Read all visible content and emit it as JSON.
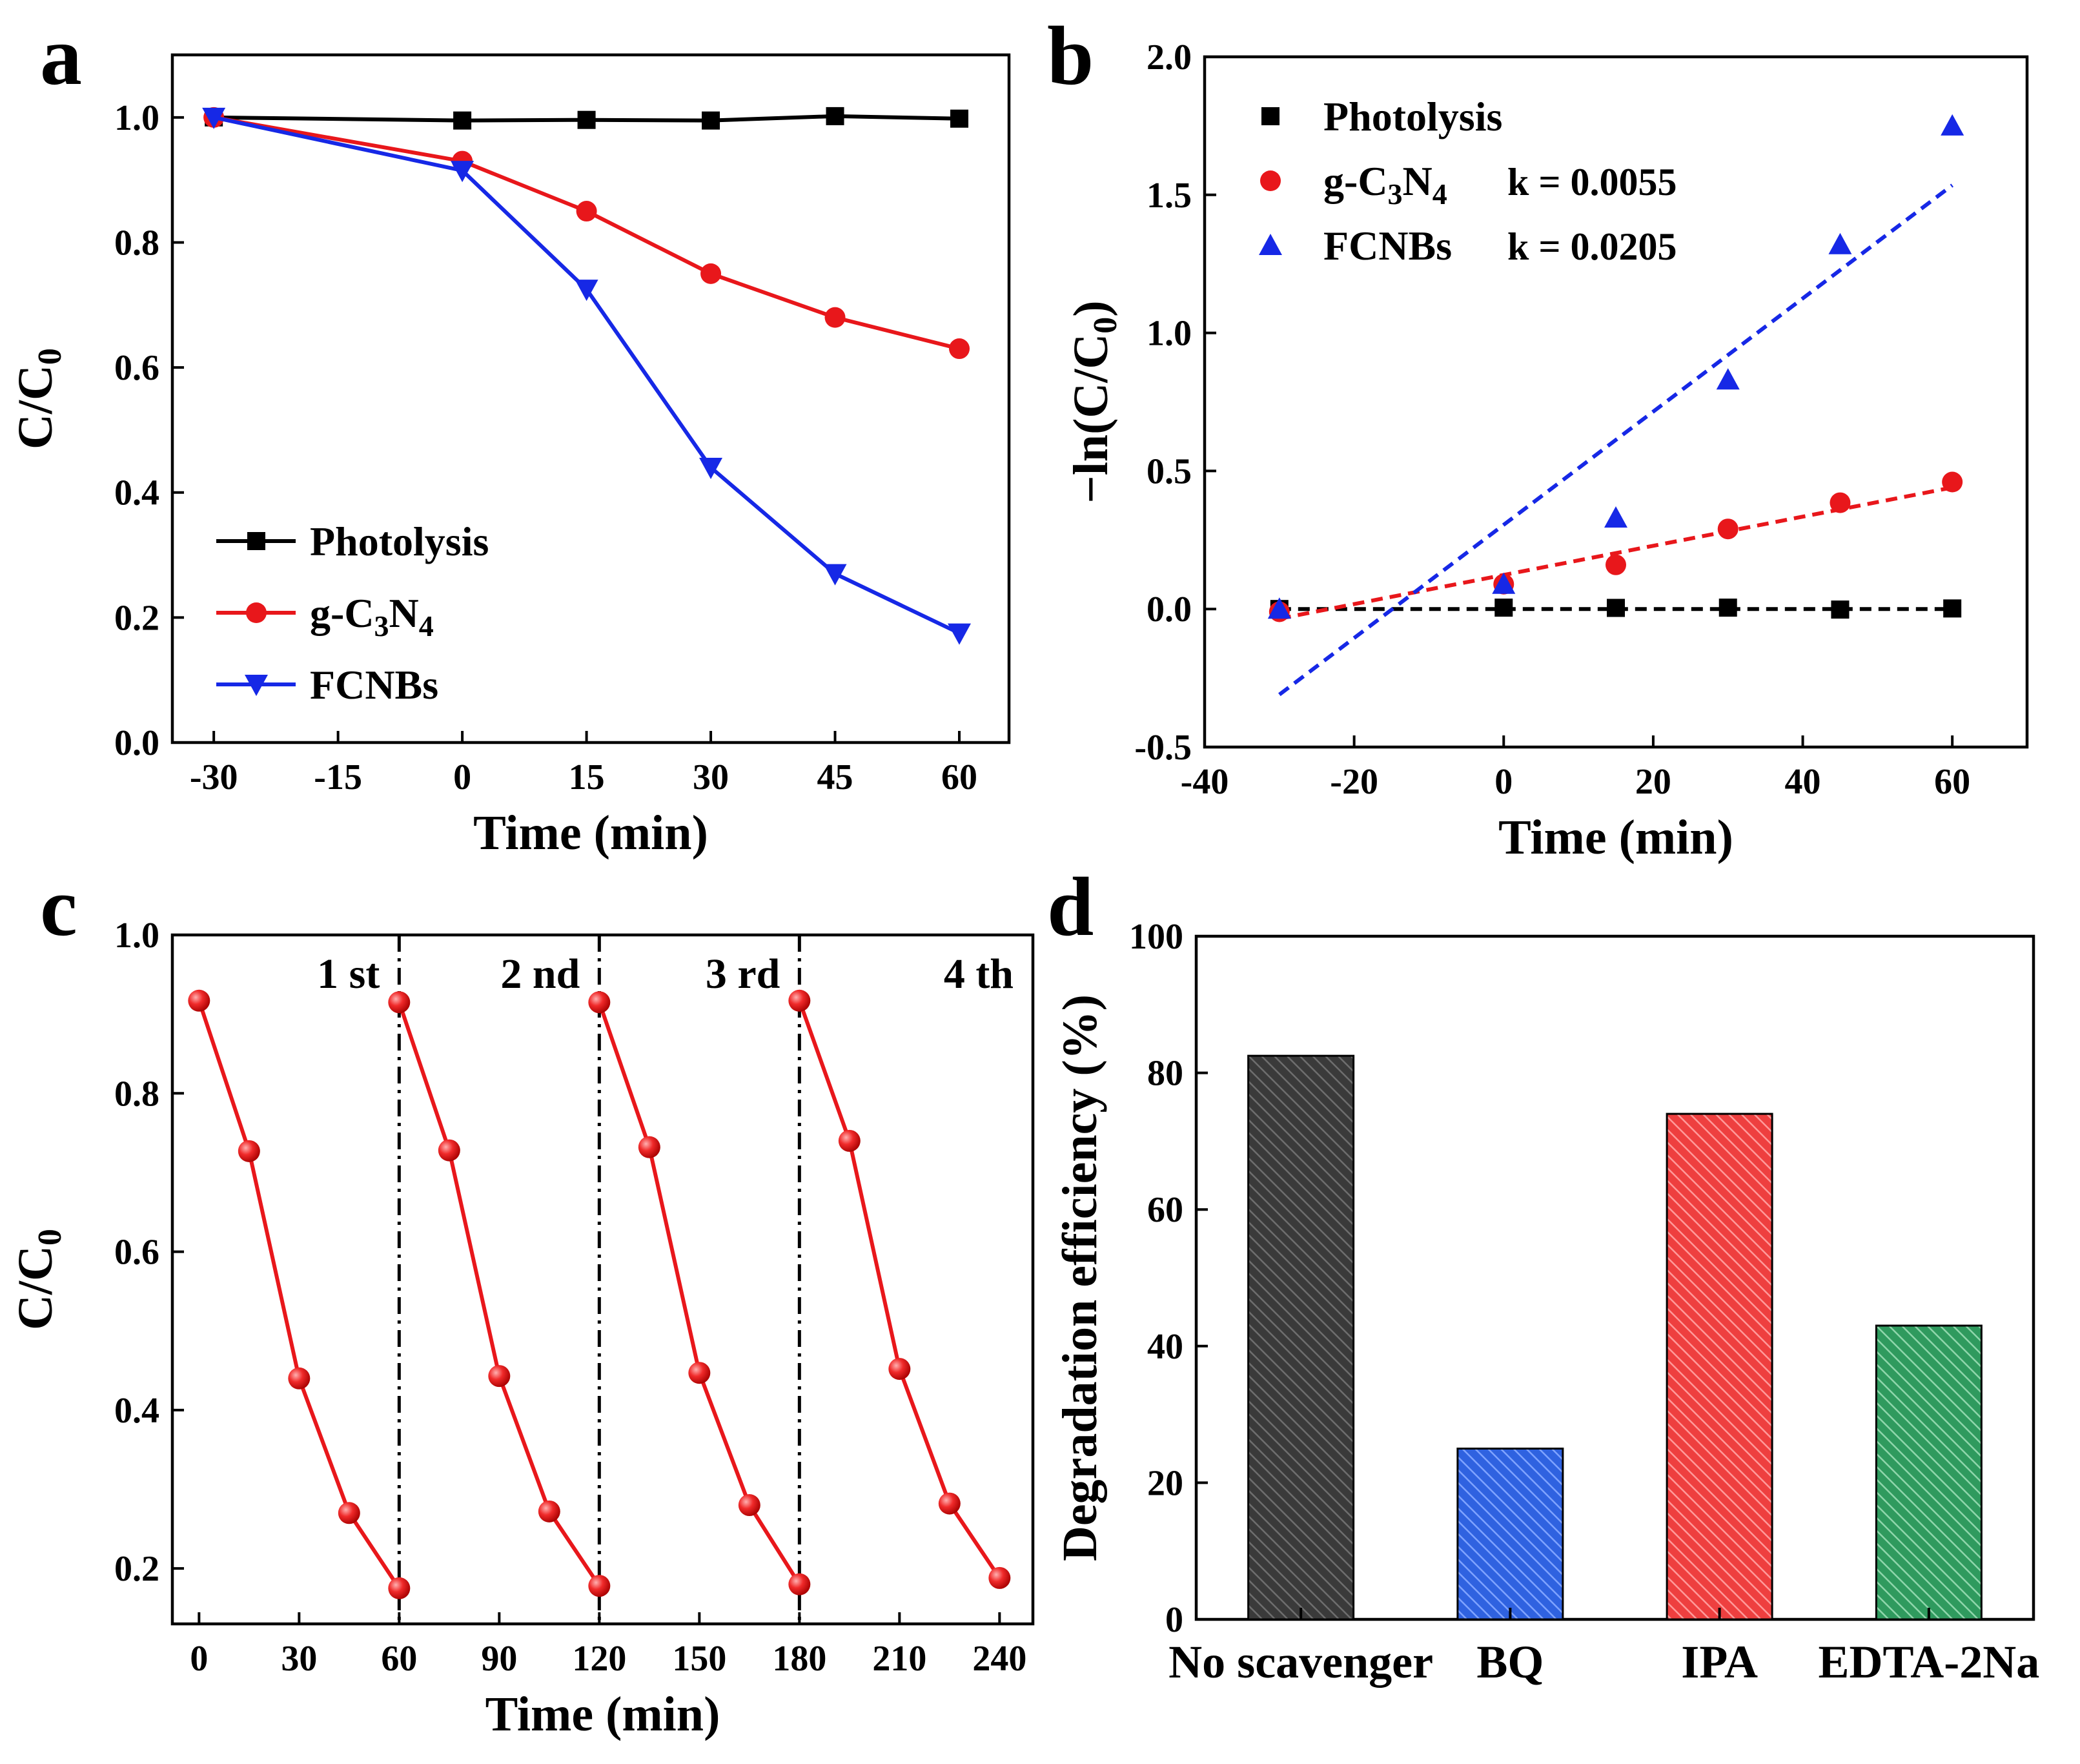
{
  "panels": {
    "a": {
      "letter": "a"
    },
    "b": {
      "letter": "b"
    },
    "c": {
      "letter": "c"
    },
    "d": {
      "letter": "d"
    }
  },
  "chart_data": [
    {
      "id": "a",
      "type": "line",
      "xlabel": "Time (min)",
      "ylabel_main": "C/C",
      "ylabel_sub": "0",
      "xlim": [
        -35,
        66
      ],
      "ylim": [
        0,
        1.1
      ],
      "xticks": [
        -30,
        -15,
        0,
        15,
        30,
        45,
        60
      ],
      "xtick_labels": [
        "-30",
        "-15",
        "0",
        "15",
        "30",
        "45",
        "60"
      ],
      "yticks": [
        0,
        0.2,
        0.4,
        0.6,
        0.8,
        1.0
      ],
      "ytick_labels": [
        "0.0",
        "0.2",
        "0.4",
        "0.6",
        "0.8",
        "1.0"
      ],
      "x": [
        -30,
        0,
        15,
        30,
        45,
        60
      ],
      "legend_position": "bottom-left",
      "series": [
        {
          "name": "Photolysis",
          "legend_main": "Photolysis",
          "legend_parts": [],
          "color": "#000000",
          "marker": "square",
          "values": [
            1.0,
            0.995,
            0.996,
            0.995,
            1.002,
            0.998
          ]
        },
        {
          "name": "g-C3N4",
          "legend_main": "g-C",
          "legend_parts": [
            {
              "t": "3",
              "sub": true
            },
            {
              "t": "N",
              "sub": false
            },
            {
              "t": "4",
              "sub": true
            }
          ],
          "color": "#e8171b",
          "marker": "circle",
          "values": [
            1.0,
            0.93,
            0.85,
            0.75,
            0.68,
            0.63
          ]
        },
        {
          "name": "FCNBs",
          "legend_main": "FCNBs",
          "legend_parts": [],
          "color": "#1628e6",
          "marker": "triangle-down",
          "values": [
            1.0,
            0.915,
            0.725,
            0.44,
            0.27,
            0.175
          ]
        }
      ]
    },
    {
      "id": "b",
      "type": "scatter",
      "xlabel": "Time (min)",
      "ylabel_main": "−ln(C/C",
      "ylabel_sub": "0",
      "ylabel_end": ")",
      "xlim": [
        -40,
        70
      ],
      "ylim": [
        -0.5,
        2.0
      ],
      "xticks": [
        -40,
        -20,
        0,
        20,
        40,
        60
      ],
      "xtick_labels": [
        "-40",
        "-20",
        "0",
        "20",
        "40",
        "60"
      ],
      "yticks": [
        -0.5,
        0.0,
        0.5,
        1.0,
        1.5,
        2.0
      ],
      "ytick_labels": [
        "-0.5",
        "0.0",
        "0.5",
        "1.0",
        "1.5",
        "2.0"
      ],
      "x": [
        -30,
        0,
        15,
        30,
        45,
        60
      ],
      "legend_position": "top-left",
      "series": [
        {
          "name": "Photolysis",
          "legend_main": "Photolysis",
          "legend_parts": [],
          "color": "#000000",
          "marker": "square",
          "values": [
            0.0,
            0.005,
            0.004,
            0.005,
            -0.002,
            0.002
          ],
          "fit": [
            0.0,
            0.0
          ]
        },
        {
          "name": "g-C3N4",
          "legend_main": "g-C",
          "legend_parts": [
            {
              "t": "3",
              "sub": true
            },
            {
              "t": "N",
              "sub": false
            },
            {
              "t": "4",
              "sub": true
            }
          ],
          "color": "#e8171b",
          "marker": "circle",
          "values": [
            -0.01,
            0.09,
            0.16,
            0.29,
            0.385,
            0.46
          ],
          "fit": [
            -0.035,
            0.44
          ],
          "k": "k = 0.0055"
        },
        {
          "name": "FCNBs",
          "legend_main": "FCNBs",
          "legend_parts": [],
          "color": "#1628e6",
          "marker": "triangle-up",
          "values": [
            0.0,
            0.09,
            0.33,
            0.83,
            1.32,
            1.75
          ],
          "fit": [
            -0.31,
            1.535
          ],
          "k": "k = 0.0205"
        }
      ]
    },
    {
      "id": "c",
      "type": "line",
      "xlabel": "Time (min)",
      "ylabel_main": "C/C",
      "ylabel_sub": "0",
      "xlim": [
        -8,
        250
      ],
      "ylim": [
        0.13,
        1.0
      ],
      "xticks": [
        0,
        30,
        60,
        90,
        120,
        150,
        180,
        210,
        240
      ],
      "xtick_labels": [
        "0",
        "30",
        "60",
        "90",
        "120",
        "150",
        "180",
        "210",
        "240"
      ],
      "yticks": [
        0.2,
        0.4,
        0.6,
        0.8,
        1.0
      ],
      "ytick_labels": [
        "0.2",
        "0.4",
        "0.6",
        "0.8",
        "1.0"
      ],
      "dividers": [
        60,
        120,
        180
      ],
      "cycles": [
        {
          "label": "1 st",
          "x": [
            0,
            15,
            30,
            45,
            60
          ],
          "values": [
            0.917,
            0.727,
            0.44,
            0.27,
            0.175
          ]
        },
        {
          "label": "2 nd",
          "x": [
            60,
            75,
            90,
            105,
            120
          ],
          "values": [
            0.915,
            0.728,
            0.443,
            0.272,
            0.178
          ]
        },
        {
          "label": "3 rd",
          "x": [
            120,
            135,
            150,
            165,
            180
          ],
          "values": [
            0.915,
            0.732,
            0.447,
            0.28,
            0.18
          ]
        },
        {
          "label": "4 th",
          "x": [
            180,
            195,
            210,
            225,
            240
          ],
          "values": [
            0.917,
            0.74,
            0.452,
            0.282,
            0.188
          ]
        }
      ],
      "color": "#e8171b"
    },
    {
      "id": "d",
      "type": "bar",
      "ylabel": "Degradation efficiency (%)",
      "ylim": [
        0,
        100
      ],
      "yticks": [
        0,
        20,
        40,
        60,
        80,
        100
      ],
      "ytick_labels": [
        "0",
        "20",
        "40",
        "60",
        "80",
        "100"
      ],
      "categories": [
        "No scavenger",
        "BQ",
        "IPA",
        "EDTA-2Na"
      ],
      "values": [
        82.5,
        25,
        74,
        43
      ],
      "colors": [
        "#4a4a4a",
        "#3a6fe8",
        "#f05050",
        "#3aa86a"
      ]
    }
  ]
}
